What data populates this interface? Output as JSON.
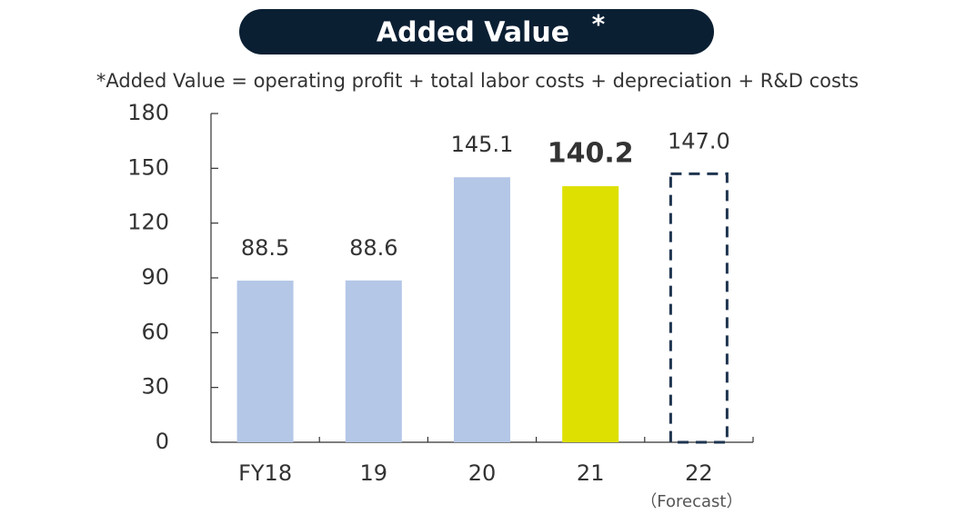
{
  "chart_data": {
    "type": "bar",
    "title": "Added Value",
    "title_mark": "*",
    "subtitle": "*Added Value = operating profit + total labor costs + depreciation + R&D costs",
    "categories": [
      "FY18",
      "19",
      "20",
      "21",
      "22"
    ],
    "category_notes": [
      null,
      null,
      null,
      null,
      "（Forecast）"
    ],
    "values": [
      88.5,
      88.6,
      145.1,
      140.2,
      147.0
    ],
    "value_labels": [
      "88.5",
      "88.6",
      "145.1",
      "140.2",
      "147.0"
    ],
    "label_weights": [
      "normal",
      "normal",
      "normal",
      "bold",
      "normal"
    ],
    "colors": [
      "#b4c7e7",
      "#b4c7e7",
      "#b4c7e7",
      "#dde000",
      "#1f3550"
    ],
    "bar_styles": [
      "fill",
      "fill",
      "fill",
      "fill",
      "dashed"
    ],
    "ylim": [
      0,
      180
    ],
    "yticks": [
      0,
      30,
      60,
      90,
      120,
      150,
      180
    ],
    "grid": false
  }
}
